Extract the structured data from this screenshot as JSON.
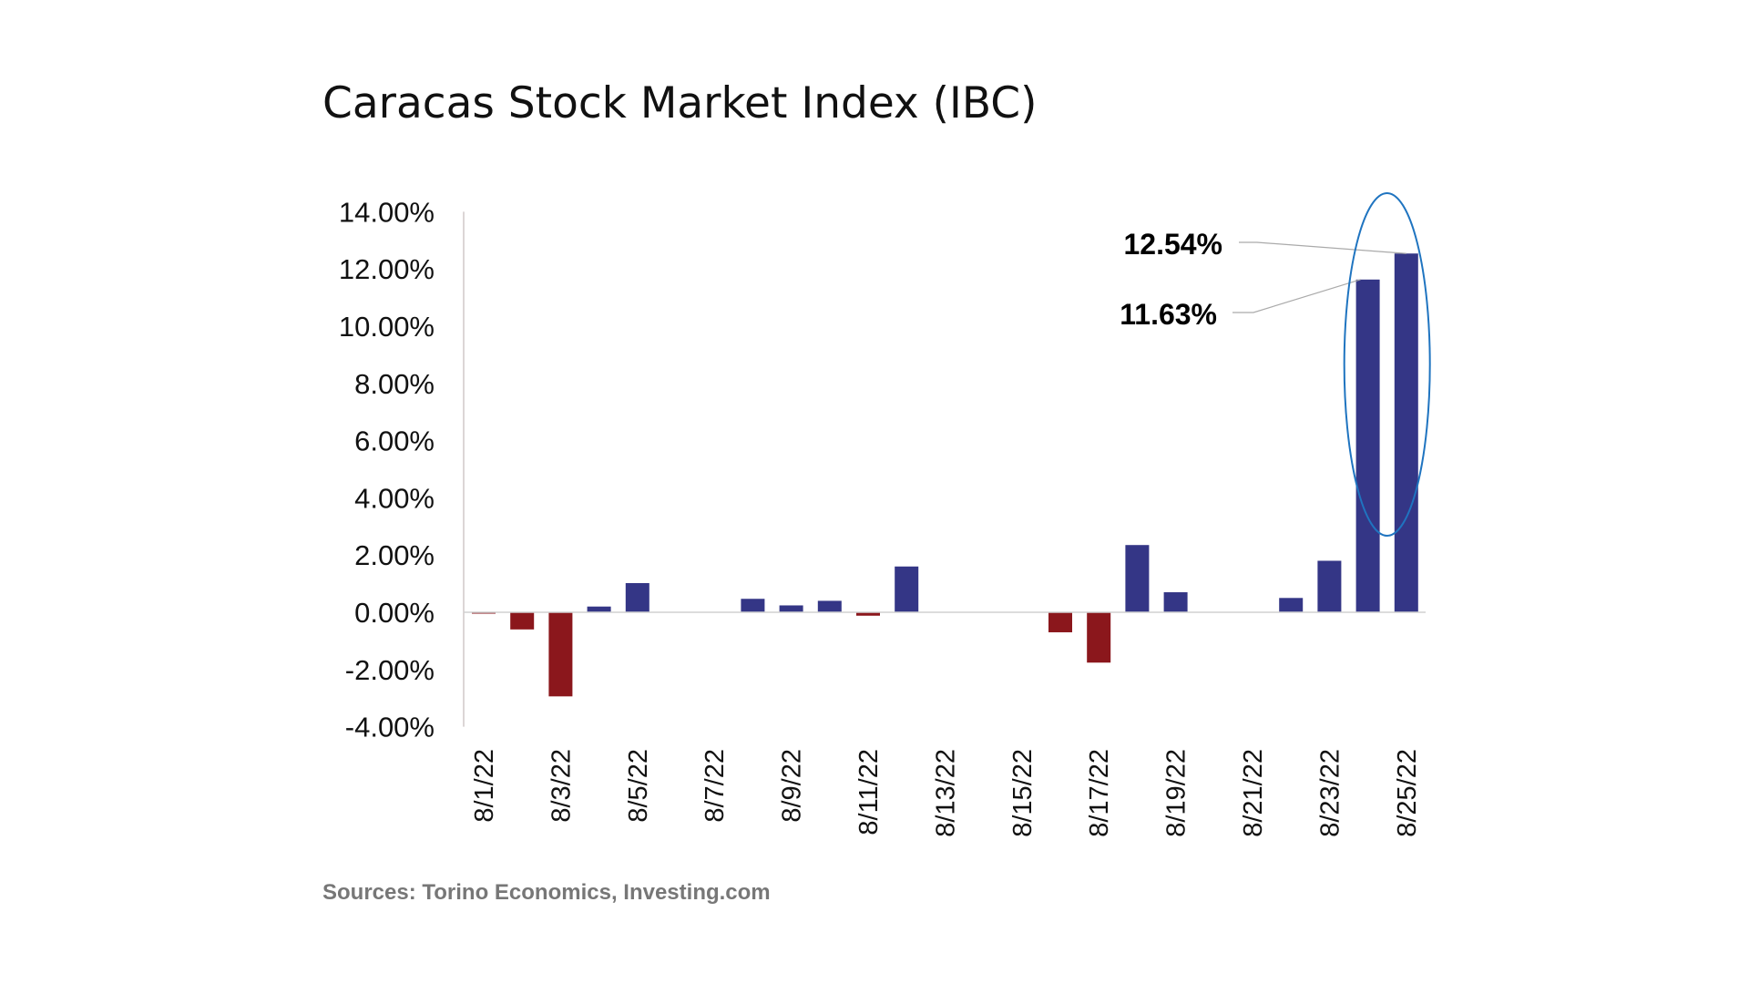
{
  "chart_data": {
    "type": "bar",
    "title": "Caracas Stock Market Index (IBC)",
    "source": "Sources: Torino Economics, Investing.com",
    "categories": [
      "8/1/22",
      "8/2/22",
      "8/3/22",
      "8/4/22",
      "8/5/22",
      "8/6/22",
      "8/7/22",
      "8/8/22",
      "8/9/22",
      "8/10/22",
      "8/11/22",
      "8/12/22",
      "8/13/22",
      "8/14/22",
      "8/15/22",
      "8/16/22",
      "8/17/22",
      "8/18/22",
      "8/19/22",
      "8/20/22",
      "8/21/22",
      "8/22/22",
      "8/23/22",
      "8/24/22",
      "8/25/22"
    ],
    "tick_labels": [
      "8/1/22",
      "8/3/22",
      "8/5/22",
      "8/7/22",
      "8/9/22",
      "8/11/22",
      "8/13/22",
      "8/15/22",
      "8/17/22",
      "8/19/22",
      "8/21/22",
      "8/23/22",
      "8/25/22"
    ],
    "values": [
      -0.02,
      -0.6,
      -2.94,
      0.2,
      1.02,
      0,
      0,
      0.47,
      0.24,
      0.4,
      -0.12,
      1.6,
      0,
      0,
      0,
      -0.7,
      -1.76,
      2.35,
      0.7,
      0,
      0,
      0.5,
      1.8,
      11.63,
      12.54
    ],
    "unit": "%",
    "ylim": [
      -4,
      14
    ],
    "yticks": [
      "14.00%",
      "12.00%",
      "10.00%",
      "8.00%",
      "6.00%",
      "4.00%",
      "2.00%",
      "0.00%",
      "-2.00%",
      "-4.00%"
    ],
    "ytick_values": [
      14,
      12,
      10,
      8,
      6,
      4,
      2,
      0,
      -2,
      -4
    ],
    "grid": false,
    "annotations": [
      {
        "text": "12.54%",
        "category": "8/25/22"
      },
      {
        "text": "11.63%",
        "category": "8/24/22"
      }
    ],
    "highlight": {
      "shape": "ellipse",
      "categories": [
        "8/24/22",
        "8/25/22"
      ],
      "color": "#1f74c0"
    },
    "colors": {
      "positive": "#343686",
      "negative": "#8b171c",
      "axis": "#d0c8c8"
    }
  }
}
